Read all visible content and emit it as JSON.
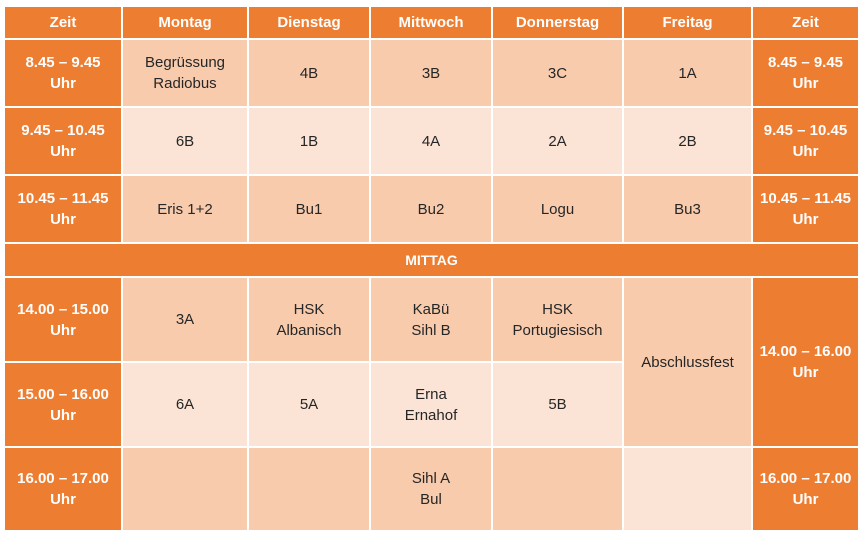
{
  "header": [
    "Zeit",
    "Montag",
    "Dienstag",
    "Mittwoch",
    "Donnerstag",
    "Freitag",
    "Zeit"
  ],
  "times": {
    "t1": [
      "8.45 – 9.45",
      "Uhr"
    ],
    "t2": [
      "9.45 – 10.45",
      "Uhr"
    ],
    "t3": [
      "10.45 – 11.45",
      "Uhr"
    ],
    "t4": [
      "14.00 – 15.00",
      "Uhr"
    ],
    "t5": [
      "15.00 – 16.00",
      "Uhr"
    ],
    "t6": [
      "16.00 – 17.00",
      "Uhr"
    ],
    "t45_right": [
      "14.00 – 16.00",
      "Uhr"
    ]
  },
  "mittag": "MITTAG",
  "cells": {
    "r1": {
      "mo": [
        "Begrüssung",
        "Radiobus"
      ],
      "di": "4B",
      "mi": "3B",
      "do": "3C",
      "fr": "1A"
    },
    "r2": {
      "mo": "6B",
      "di": "1B",
      "mi": "4A",
      "do": "2A",
      "fr": "2B"
    },
    "r3": {
      "mo": "Eris 1+2",
      "di": "Bu1",
      "mi": "Bu2",
      "do": "Logu",
      "fr": "Bu3"
    },
    "r4": {
      "mo": "3A",
      "di": [
        "HSK",
        "Albanisch"
      ],
      "mi": [
        "KaBü",
        "Sihl B"
      ],
      "do": [
        "HSK",
        "Portugiesisch"
      ]
    },
    "r5": {
      "mo": "6A",
      "di": "5A",
      "mi": [
        "Erna",
        "Ernahof"
      ],
      "do": "5B"
    },
    "r6": {
      "mi": [
        "Sihl A",
        "Bul"
      ]
    },
    "fr_merged": "Abschlussfest"
  },
  "colors": {
    "orange": "#ed7d31",
    "peach_dark": "#f8cbad",
    "peach_light": "#fbe4d5",
    "white": "#ffffff"
  }
}
